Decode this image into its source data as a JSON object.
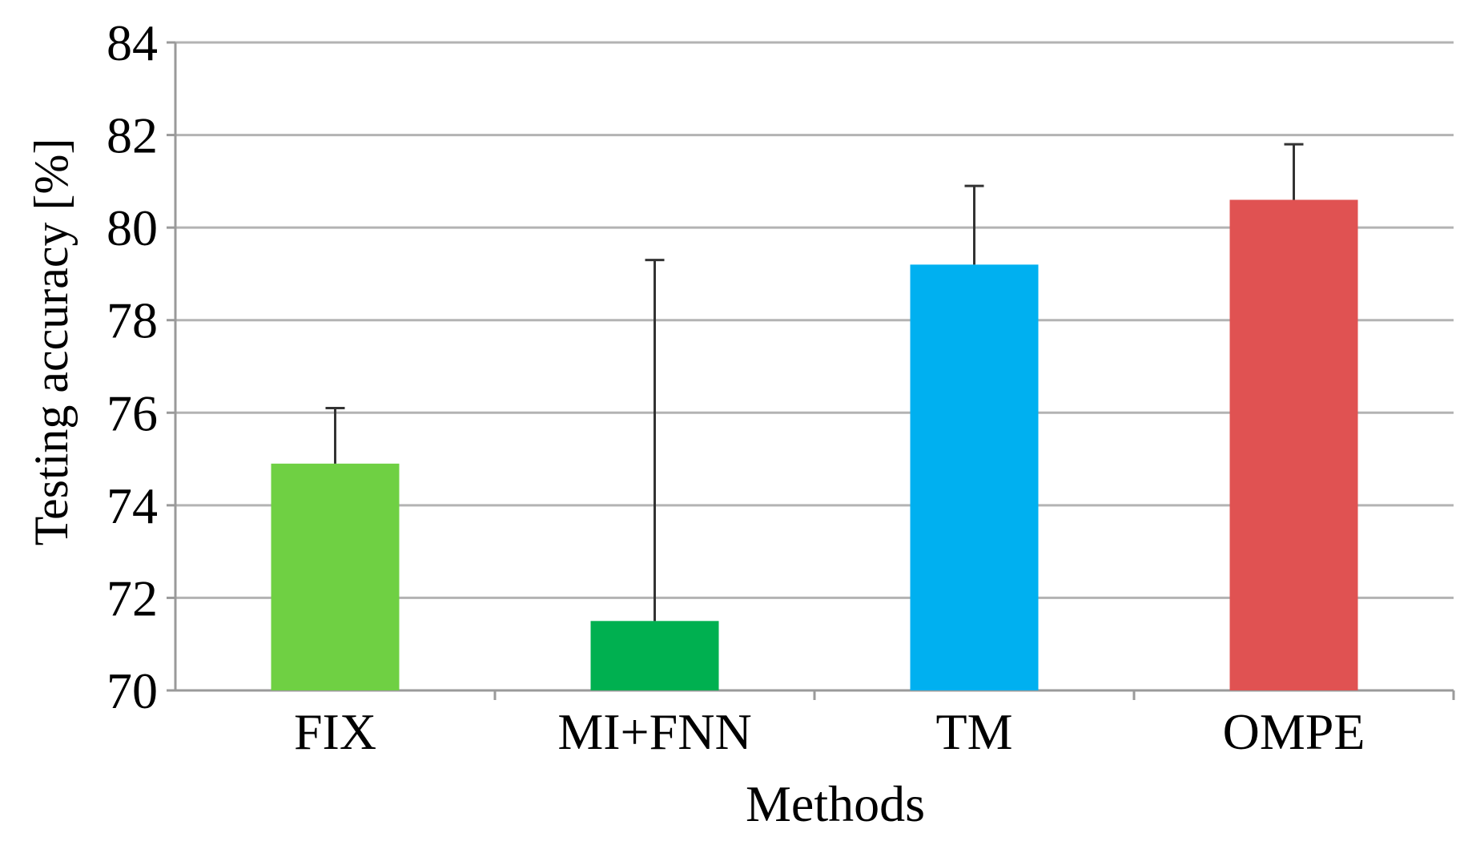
{
  "chart_data": {
    "type": "bar",
    "title": "",
    "xlabel": "Methods",
    "ylabel": "Testing accuracy [%]",
    "categories": [
      "FIX",
      "MI+FNN",
      "TM",
      "OMPE"
    ],
    "values": [
      74.9,
      71.5,
      79.2,
      80.6
    ],
    "error_upper": [
      76.1,
      79.3,
      80.9,
      81.8
    ],
    "colors": [
      "#6fd043",
      "#00b050",
      "#00b0f0",
      "#e05252"
    ],
    "ylim": [
      70,
      84
    ],
    "yticks": [
      70,
      72,
      74,
      76,
      78,
      80,
      82,
      84
    ],
    "ytick_labels": [
      "70",
      "72",
      "74",
      "76",
      "78",
      "80",
      "82",
      "84"
    ],
    "grid": true,
    "legend": "none"
  }
}
